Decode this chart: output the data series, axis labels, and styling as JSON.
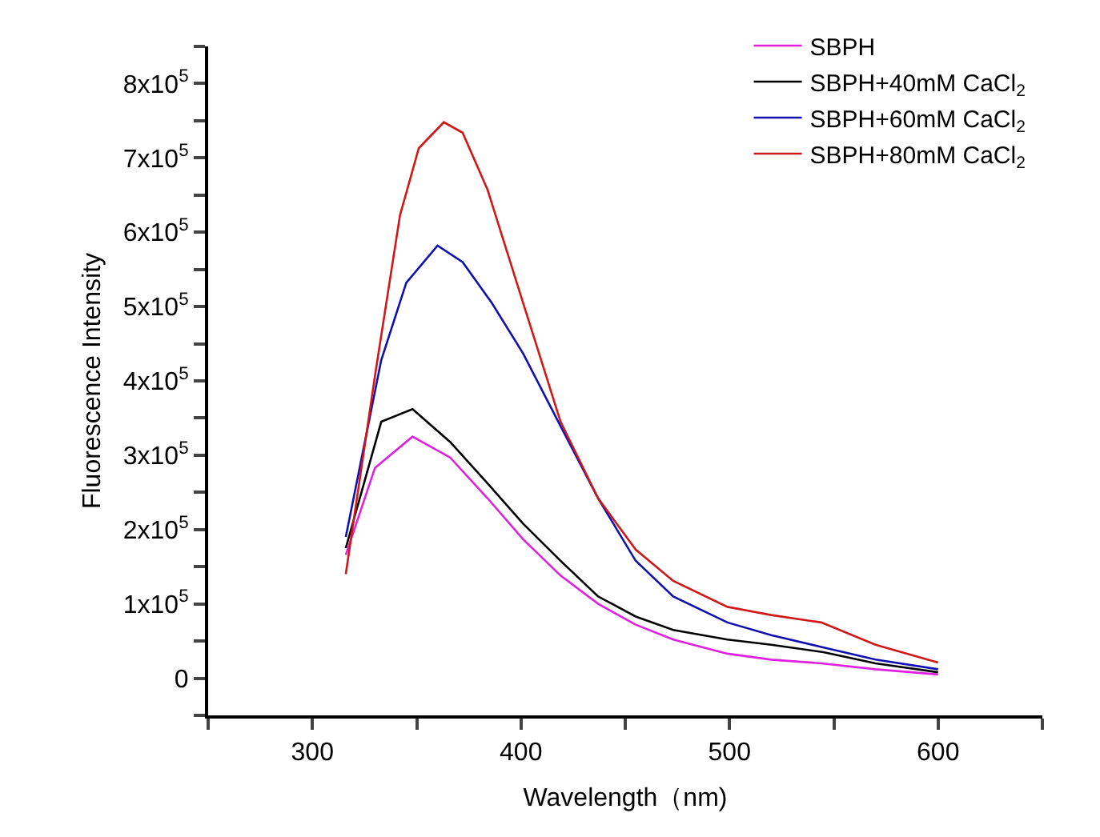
{
  "chart_data": {
    "type": "line",
    "xlabel": "Wavelength（nm)",
    "ylabel": "Fluorescence Intensity",
    "xlim": [
      250,
      650
    ],
    "ylim": [
      -50000,
      850000
    ],
    "xticks": [
      {
        "value": 250,
        "label": null
      },
      300,
      {
        "value": 350,
        "label": null
      },
      400,
      {
        "value": 450,
        "label": null
      },
      500,
      {
        "value": 550,
        "label": null
      },
      600,
      {
        "value": 650,
        "label": null
      }
    ],
    "yticks": [
      {
        "value": -50000,
        "label": null
      },
      {
        "value": 0,
        "label": "0"
      },
      {
        "value": 50000,
        "label": null
      },
      {
        "value": 100000,
        "label": "1x10$^{5}$"
      },
      {
        "value": 150000,
        "label": null
      },
      {
        "value": 200000,
        "label": "2x10$^{5}$"
      },
      {
        "value": 250000,
        "label": null
      },
      {
        "value": 300000,
        "label": "3x10$^{5}$"
      },
      {
        "value": 350000,
        "label": null
      },
      {
        "value": 400000,
        "label": "4x10$^{5}$"
      },
      {
        "value": 450000,
        "label": null
      },
      {
        "value": 500000,
        "label": "5x10$^{5}$"
      },
      {
        "value": 550000,
        "label": null
      },
      {
        "value": 600000,
        "label": "6x10$^{5}$"
      },
      {
        "value": 650000,
        "label": null
      },
      {
        "value": 700000,
        "label": "7x10$^{5}$"
      },
      {
        "value": 750000,
        "label": null
      },
      {
        "value": 800000,
        "label": "8x10$^{5}$"
      },
      {
        "value": 850000,
        "label": null
      }
    ],
    "grid": false,
    "legend": "top right",
    "marker": "none",
    "line_style": "solid",
    "series": [
      {
        "name": "SBPH",
        "color": "#e020e0",
        "x": [
          316,
          330,
          348,
          366,
          384,
          401,
          419,
          437,
          455,
          473,
          499,
          520,
          544,
          570,
          600
        ],
        "values": [
          166000,
          283000,
          325000,
          297000,
          242000,
          187000,
          138000,
          100000,
          72000,
          52000,
          33000,
          25000,
          20000,
          12000,
          5000
        ]
      },
      {
        "name": "SBPH+40mM CaCl$_{2}$",
        "color": "#000000",
        "x": [
          316,
          333,
          348,
          366,
          384,
          401,
          419,
          437,
          455,
          473,
          499,
          520,
          545,
          570,
          600
        ],
        "values": [
          175000,
          345000,
          362000,
          318000,
          262000,
          208000,
          158000,
          110000,
          83000,
          65000,
          52000,
          45000,
          35000,
          20000,
          8000
        ]
      },
      {
        "name": "SBPH+60mM CaCl$_{2}$",
        "color": "#1010b0",
        "x": [
          316,
          333,
          345,
          360,
          372,
          386,
          401,
          419,
          437,
          455,
          473,
          499,
          520,
          544,
          570,
          600
        ],
        "values": [
          190000,
          428000,
          532000,
          582000,
          560000,
          505000,
          437000,
          339000,
          242000,
          158000,
          110000,
          75000,
          58000,
          42000,
          25000,
          12000
        ]
      },
      {
        "name": "SBPH+80mM CaCl$_{2}$",
        "color": "#d01818",
        "x": [
          316,
          330,
          342,
          351,
          363,
          372,
          384,
          401,
          419,
          437,
          455,
          473,
          499,
          520,
          544,
          570,
          600
        ],
        "values": [
          140000,
          407000,
          623000,
          713000,
          748000,
          734000,
          657000,
          505000,
          345000,
          242000,
          173000,
          131000,
          96000,
          85000,
          75000,
          45000,
          21000
        ]
      }
    ]
  }
}
